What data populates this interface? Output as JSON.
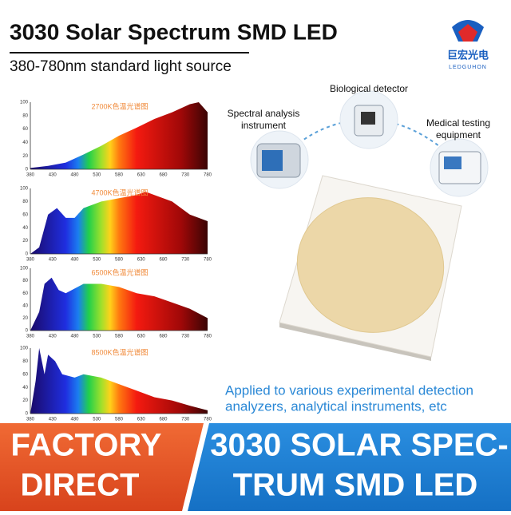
{
  "header": {
    "title": "3030 Solar Spectrum SMD LED",
    "subtitle": "380-780nm standard light source",
    "logo_text": "巨宏光电",
    "logo_subtext": "LEDGUHON"
  },
  "spectra": {
    "x_ticks": [
      380,
      430,
      480,
      530,
      580,
      630,
      680,
      730,
      780
    ],
    "y_ticks": [
      0,
      20,
      40,
      60,
      80,
      100
    ],
    "panels": [
      {
        "label": "2700K色温光谱图"
      },
      {
        "label": "4700K色温光谱图"
      },
      {
        "label": "6500K色温光谱图"
      },
      {
        "label": "8500K色温光谱图"
      }
    ]
  },
  "applications": [
    {
      "lines": [
        "Spectral analysis",
        "instrument"
      ]
    },
    {
      "lines": [
        "Biological detector"
      ]
    },
    {
      "lines": [
        "Medical testing",
        "equipment"
      ]
    }
  ],
  "caption": {
    "lines": [
      "Applied to various experimental detection",
      "analyzers, analytical instruments, etc"
    ]
  },
  "banner": {
    "left": [
      "FACTORY",
      "DIRECT"
    ],
    "right": [
      "3030 SOLAR SPEC-",
      "TRUM SMD LED"
    ]
  }
}
